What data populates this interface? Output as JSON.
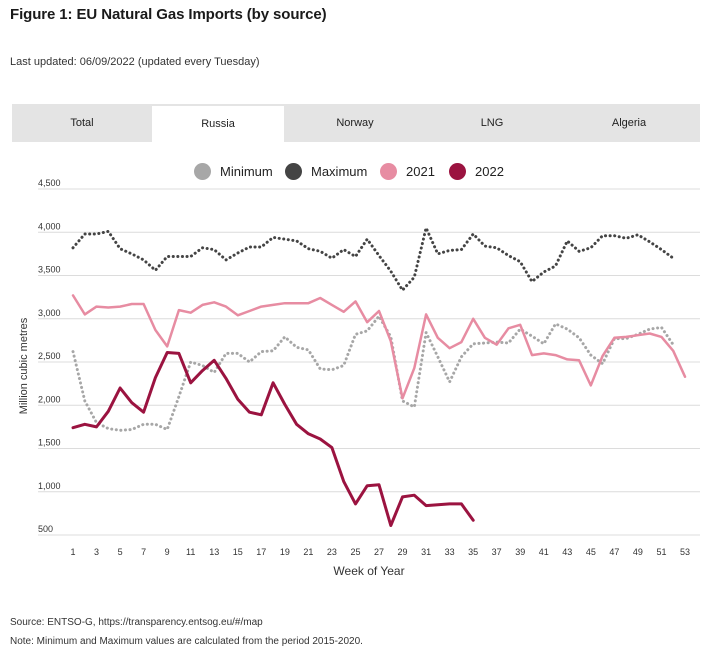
{
  "title": "Figure 1: EU Natural Gas Imports (by source)",
  "updated": "Last updated: 06/09/2022 (updated every Tuesday)",
  "tabs": [
    {
      "label": "Total",
      "active": false
    },
    {
      "label": "Russia",
      "active": true
    },
    {
      "label": "Norway",
      "active": false
    },
    {
      "label": "LNG",
      "active": false
    },
    {
      "label": "Algeria",
      "active": false
    }
  ],
  "footer": {
    "source": "Source: ENTSO-G,   https://transparency.entsog.eu/#/map",
    "note": "Note: Minimum and Maximum values are calculated from the period 2015-2020."
  },
  "chart_data": {
    "type": "line",
    "xlabel": "Week of Year",
    "ylabel": "Million cubic metres",
    "ylim": [
      500,
      4500
    ],
    "xlim": [
      1,
      53
    ],
    "ytick_values": [
      500,
      1000,
      1500,
      2000,
      2500,
      3000,
      3500,
      4000,
      4500
    ],
    "ytick_labels": [
      "500",
      "1,000",
      "1,500",
      "2,000",
      "2,500",
      "3,000",
      "3,500",
      "4,000",
      "4,500"
    ],
    "xticks": [
      1,
      3,
      5,
      7,
      9,
      11,
      13,
      15,
      17,
      19,
      21,
      23,
      25,
      27,
      29,
      31,
      33,
      35,
      37,
      39,
      41,
      43,
      45,
      47,
      49,
      51,
      53
    ],
    "grid": "horizontal",
    "legend_position": "top-center",
    "series": [
      {
        "name": "Minimum",
        "color": "#a7a7a7",
        "style": "dotted",
        "x": [
          1,
          2,
          3,
          4,
          5,
          6,
          7,
          8,
          9,
          10,
          11,
          12,
          13,
          14,
          15,
          16,
          17,
          18,
          19,
          20,
          21,
          22,
          23,
          24,
          25,
          26,
          27,
          28,
          29,
          30,
          31,
          32,
          33,
          34,
          35,
          36,
          37,
          38,
          39,
          40,
          41,
          42,
          43,
          44,
          45,
          46,
          47,
          48,
          49,
          50,
          51,
          52
        ],
        "y": [
          2620,
          2050,
          1800,
          1730,
          1710,
          1720,
          1780,
          1780,
          1720,
          2100,
          2500,
          2460,
          2380,
          2600,
          2600,
          2500,
          2620,
          2630,
          2790,
          2670,
          2640,
          2420,
          2410,
          2460,
          2820,
          2860,
          3030,
          2790,
          2050,
          1980,
          2840,
          2560,
          2270,
          2560,
          2710,
          2720,
          2730,
          2720,
          2880,
          2800,
          2710,
          2940,
          2880,
          2780,
          2580,
          2480,
          2770,
          2770,
          2820,
          2880,
          2900,
          2700
        ]
      },
      {
        "name": "Maximum",
        "color": "#444444",
        "style": "dotted",
        "x": [
          1,
          2,
          3,
          4,
          5,
          6,
          7,
          8,
          9,
          10,
          11,
          12,
          13,
          14,
          15,
          16,
          17,
          18,
          19,
          20,
          21,
          22,
          23,
          24,
          25,
          26,
          27,
          28,
          29,
          30,
          31,
          32,
          33,
          34,
          35,
          36,
          37,
          38,
          39,
          40,
          41,
          42,
          43,
          44,
          45,
          46,
          47,
          48,
          49,
          50,
          51,
          52
        ],
        "y": [
          3820,
          3980,
          3980,
          4010,
          3810,
          3750,
          3680,
          3560,
          3720,
          3720,
          3720,
          3820,
          3800,
          3680,
          3760,
          3830,
          3830,
          3940,
          3920,
          3900,
          3810,
          3780,
          3700,
          3800,
          3720,
          3920,
          3730,
          3550,
          3330,
          3480,
          4050,
          3750,
          3790,
          3800,
          3980,
          3840,
          3820,
          3730,
          3660,
          3430,
          3540,
          3610,
          3900,
          3780,
          3820,
          3960,
          3960,
          3930,
          3970,
          3890,
          3800,
          3700
        ]
      },
      {
        "name": "2021",
        "color": "#e78ca2",
        "style": "solid",
        "x": [
          1,
          2,
          3,
          4,
          5,
          6,
          7,
          8,
          9,
          10,
          11,
          12,
          13,
          14,
          15,
          16,
          17,
          18,
          19,
          20,
          21,
          22,
          23,
          24,
          25,
          26,
          27,
          28,
          29,
          30,
          31,
          32,
          33,
          34,
          35,
          36,
          37,
          38,
          39,
          40,
          41,
          42,
          43,
          44,
          45,
          46,
          47,
          48,
          49,
          50,
          51,
          52,
          53
        ],
        "y": [
          3270,
          3050,
          3140,
          3130,
          3140,
          3170,
          3170,
          2870,
          2680,
          3100,
          3070,
          3160,
          3190,
          3140,
          3040,
          3090,
          3140,
          3160,
          3180,
          3180,
          3180,
          3240,
          3160,
          3080,
          3200,
          2960,
          3090,
          2740,
          2080,
          2430,
          3050,
          2780,
          2660,
          2730,
          3000,
          2780,
          2700,
          2890,
          2930,
          2580,
          2600,
          2580,
          2530,
          2520,
          2230,
          2570,
          2780,
          2790,
          2810,
          2830,
          2790,
          2630,
          2330
        ]
      },
      {
        "name": "2022",
        "color": "#9b1340",
        "style": "solid",
        "x": [
          1,
          2,
          3,
          4,
          5,
          6,
          7,
          8,
          9,
          10,
          11,
          12,
          13,
          14,
          15,
          16,
          17,
          18,
          19,
          20,
          21,
          22,
          23,
          24,
          25,
          26,
          27,
          28,
          29,
          30,
          31,
          32,
          33,
          34,
          35
        ],
        "y": [
          1740,
          1780,
          1750,
          1930,
          2200,
          2030,
          1920,
          2320,
          2610,
          2600,
          2260,
          2400,
          2520,
          2310,
          2070,
          1920,
          1890,
          2260,
          2010,
          1780,
          1670,
          1610,
          1510,
          1120,
          860,
          1070,
          1080,
          610,
          940,
          960,
          840,
          850,
          860,
          860,
          670
        ]
      }
    ]
  }
}
